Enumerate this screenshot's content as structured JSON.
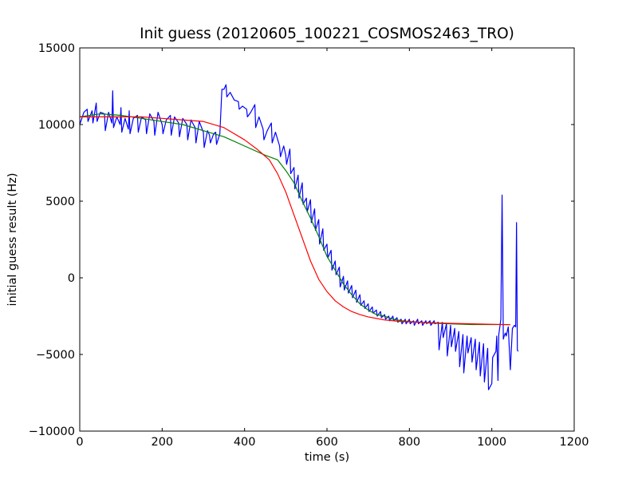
{
  "chart_data": {
    "type": "line",
    "title": "Init guess (20120605_100221_COSMOS2463_TRO)",
    "xlabel": "time (s)",
    "ylabel": "initial guess result (Hz)",
    "xlim": [
      0,
      1200
    ],
    "ylim": [
      -10000,
      15000
    ],
    "xticks": [
      0,
      200,
      400,
      600,
      800,
      1000,
      1200
    ],
    "yticks": [
      -10000,
      -5000,
      0,
      5000,
      10000,
      15000
    ],
    "xtick_labels": [
      "0",
      "200",
      "400",
      "600",
      "800",
      "1000",
      "1200"
    ],
    "ytick_labels": [
      "−10000",
      "−5000",
      "0",
      "5000",
      "10000",
      "15000"
    ],
    "grid": false,
    "legend": "none",
    "series": [
      {
        "color": "#0000ff",
        "x": [
          0,
          10,
          18,
          20,
          30,
          32,
          40,
          42,
          50,
          60,
          62,
          70,
          78,
          80,
          82,
          90,
          98,
          100,
          102,
          110,
          118,
          120,
          122,
          130,
          140,
          142,
          150,
          160,
          162,
          170,
          180,
          182,
          190,
          200,
          202,
          210,
          220,
          222,
          230,
          240,
          242,
          250,
          260,
          262,
          270,
          280,
          282,
          290,
          300,
          302,
          310,
          315,
          317,
          325,
          330,
          332,
          340,
          345,
          350,
          355,
          357,
          365,
          375,
          385,
          387,
          395,
          405,
          407,
          415,
          425,
          427,
          435,
          445,
          447,
          455,
          465,
          467,
          475,
          485,
          487,
          495,
          500,
          502,
          510,
          512,
          520,
          522,
          530,
          532,
          540,
          542,
          550,
          552,
          560,
          562,
          570,
          572,
          580,
          582,
          590,
          592,
          600,
          602,
          610,
          612,
          620,
          622,
          630,
          632,
          640,
          642,
          650,
          652,
          660,
          662,
          670,
          672,
          680,
          682,
          690,
          692,
          700,
          702,
          710,
          712,
          720,
          722,
          730,
          732,
          740,
          742,
          750,
          752,
          760,
          762,
          770,
          772,
          780,
          782,
          790,
          792,
          800,
          802,
          810,
          812,
          820,
          822,
          830,
          832,
          840,
          842,
          850,
          852,
          860,
          862,
          870,
          872,
          880,
          882,
          890,
          892,
          900,
          902,
          910,
          912,
          920,
          922,
          930,
          932,
          940,
          942,
          950,
          952,
          960,
          962,
          970,
          972,
          980,
          982,
          990,
          992,
          1000,
          1002,
          1010,
          1012,
          1015,
          1017,
          1020,
          1022,
          1025,
          1028,
          1030,
          1033,
          1035,
          1040,
          1045,
          1050,
          1055,
          1058,
          1060,
          1062,
          1064
        ],
        "y": [
          10000,
          10800,
          11000,
          10200,
          10900,
          10100,
          11400,
          10200,
          10800,
          10700,
          9600,
          10800,
          10100,
          12200,
          9800,
          10500,
          10000,
          11100,
          9500,
          10400,
          9700,
          10900,
          9400,
          10400,
          10600,
          9500,
          10500,
          10300,
          9400,
          10700,
          10200,
          9300,
          10800,
          10000,
          9400,
          10300,
          10600,
          9300,
          10500,
          10100,
          9200,
          10400,
          10000,
          9000,
          10300,
          9800,
          8800,
          10200,
          9500,
          8500,
          9600,
          9300,
          8800,
          9400,
          9500,
          8700,
          9400,
          12300,
          12300,
          12600,
          11800,
          12100,
          11600,
          11500,
          11000,
          11200,
          11000,
          10500,
          10800,
          11300,
          9800,
          10500,
          9700,
          9000,
          9600,
          10100,
          8800,
          9500,
          8600,
          7900,
          8600,
          8000,
          7400,
          8400,
          6800,
          7200,
          5800,
          6700,
          5200,
          6200,
          4800,
          5200,
          4300,
          5100,
          3600,
          4500,
          3100,
          3800,
          2200,
          3200,
          1800,
          2200,
          1300,
          1800,
          500,
          1100,
          200,
          700,
          -600,
          100,
          -800,
          -200,
          -1000,
          -500,
          -1300,
          -800,
          -1600,
          -1100,
          -1800,
          -1500,
          -2000,
          -1700,
          -2200,
          -1900,
          -2300,
          -2100,
          -2500,
          -2200,
          -2600,
          -2400,
          -2700,
          -2500,
          -2800,
          -2500,
          -2800,
          -2600,
          -2900,
          -2700,
          -3000,
          -2700,
          -3000,
          -2700,
          -3000,
          -2800,
          -3100,
          -2700,
          -3000,
          -2800,
          -3100,
          -2800,
          -3000,
          -2800,
          -3100,
          -2800,
          -3000,
          -2900,
          -4700,
          -2900,
          -3900,
          -3000,
          -5100,
          -3100,
          -4500,
          -3300,
          -4800,
          -3500,
          -5800,
          -3700,
          -6200,
          -3800,
          -4900,
          -3900,
          -5500,
          -4000,
          -6000,
          -4200,
          -6400,
          -4300,
          -6800,
          -4600,
          -7300,
          -6900,
          -5200,
          -4800,
          -3800,
          -6700,
          -3700,
          -3100,
          -2700,
          5400,
          -4000,
          -3800,
          -3600,
          -3800,
          -3200,
          -6000,
          -3300,
          -3100,
          -3200,
          3600,
          -4700,
          -4800
        ]
      },
      {
        "color": "#008000",
        "x": [
          0,
          50,
          100,
          150,
          200,
          250,
          300,
          350,
          400,
          450,
          480,
          500,
          520,
          540,
          560,
          580,
          600,
          620,
          640,
          660,
          680,
          700,
          720,
          740,
          760,
          780,
          800,
          850,
          900,
          950,
          1000,
          1040
        ],
        "y": [
          10500,
          10700,
          10600,
          10400,
          10200,
          10000,
          9600,
          9200,
          8600,
          8000,
          7700,
          7000,
          6200,
          5000,
          3900,
          2700,
          1400,
          500,
          -400,
          -1100,
          -1700,
          -2100,
          -2400,
          -2500,
          -2700,
          -2800,
          -2850,
          -2950,
          -3000,
          -3050,
          -3050,
          -3050
        ]
      },
      {
        "color": "#ff0000",
        "x": [
          0,
          50,
          100,
          150,
          200,
          250,
          300,
          350,
          400,
          430,
          460,
          480,
          500,
          520,
          540,
          560,
          580,
          600,
          620,
          640,
          660,
          680,
          700,
          720,
          740,
          760,
          780,
          800,
          850,
          900,
          950,
          1000,
          1045
        ],
        "y": [
          10500,
          10500,
          10500,
          10500,
          10400,
          10300,
          10200,
          9800,
          9000,
          8400,
          7700,
          6800,
          5600,
          4100,
          2600,
          1100,
          -100,
          -900,
          -1500,
          -1900,
          -2200,
          -2400,
          -2550,
          -2650,
          -2750,
          -2800,
          -2850,
          -2870,
          -2930,
          -2970,
          -3000,
          -3030,
          -3060
        ]
      }
    ]
  }
}
